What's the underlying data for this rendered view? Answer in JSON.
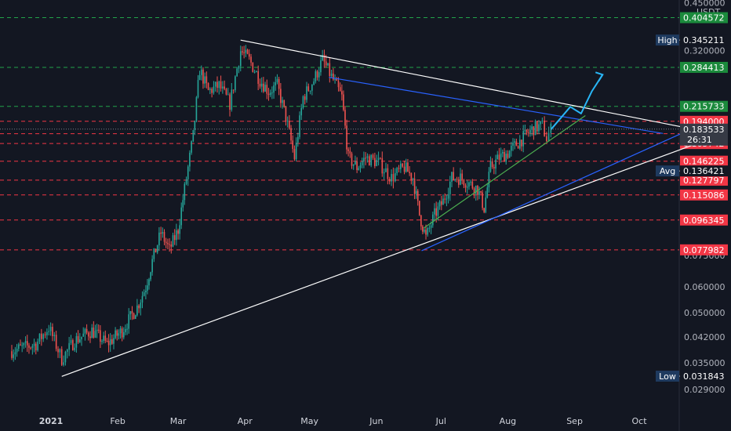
{
  "chart_data": {
    "type": "candlestick",
    "currency": "USDT",
    "y_scale": "log",
    "ylim": [
      0.026,
      0.47
    ],
    "grid": false,
    "y_ticks": [
      "0.450000",
      "0.320000",
      "0.075000",
      "0.060000",
      "0.050000",
      "0.042000",
      "0.035000",
      "0.029000"
    ],
    "x_ticks": [
      "2021",
      "Feb",
      "Mar",
      "Apr",
      "May",
      "Jun",
      "Jul",
      "Aug",
      "Sep",
      "Oct"
    ],
    "x_range": [
      "2020-12-13",
      "2021-10-27"
    ],
    "stats": {
      "high_label": "High",
      "high_value": "0.345211",
      "avg_label": "Avg",
      "avg_value": "0.136421",
      "low_label": "Low",
      "low_value": "0.031843"
    },
    "last_price": {
      "value": "0.183533",
      "countdown": "26:31"
    },
    "resistance_levels": [
      {
        "value": "0.404572",
        "style": "green-dashed"
      },
      {
        "value": "0.284413",
        "style": "green-dashed"
      },
      {
        "value": "0.215733",
        "style": "green-dashed"
      },
      {
        "value": "0.194000",
        "style": "red-dashed"
      },
      {
        "value": "0.177660",
        "style": "red-dashed"
      },
      {
        "value": "0.165742",
        "style": "red-dashed"
      },
      {
        "value": "0.146225",
        "style": "red-dashed"
      },
      {
        "value": "0.127797",
        "style": "red-dashed"
      },
      {
        "value": "0.115086",
        "style": "red-dashed"
      },
      {
        "value": "0.096345",
        "style": "red-dashed"
      },
      {
        "value": "0.077982",
        "style": "red-dashed"
      }
    ],
    "trendlines": [
      {
        "color": "#ffffff",
        "from": [
          "2021-01-06",
          0.0318
        ],
        "to": [
          "2021-10-27",
          0.165
        ]
      },
      {
        "color": "#ffffff",
        "from": [
          "2021-03-30",
          0.345
        ],
        "to": [
          "2021-10-27",
          0.183
        ]
      },
      {
        "color": "#2962ff",
        "from": [
          "2021-05-10",
          0.265
        ],
        "to": [
          "2021-10-12",
          0.178
        ]
      },
      {
        "color": "#2962ff",
        "from": [
          "2021-06-22",
          0.0775
        ],
        "to": [
          "2021-10-23",
          0.181
        ]
      },
      {
        "color": "#4caf50",
        "from": [
          "2021-06-23",
          0.091
        ],
        "to": [
          "2021-09-06",
          0.202
        ]
      }
    ],
    "price_path": [
      [
        "2020-12-13",
        0.038
      ],
      [
        "2020-12-25",
        0.04
      ],
      [
        "2020-12-31",
        0.045
      ],
      [
        "2021-01-06",
        0.036
      ],
      [
        "2021-01-12",
        0.041
      ],
      [
        "2021-01-20",
        0.044
      ],
      [
        "2021-01-27",
        0.04
      ],
      [
        "2021-02-03",
        0.044
      ],
      [
        "2021-02-10",
        0.052
      ],
      [
        "2021-02-14",
        0.06
      ],
      [
        "2021-02-17",
        0.072
      ],
      [
        "2021-02-21",
        0.088
      ],
      [
        "2021-02-25",
        0.078
      ],
      [
        "2021-03-01",
        0.09
      ],
      [
        "2021-03-04",
        0.12
      ],
      [
        "2021-03-08",
        0.175
      ],
      [
        "2021-03-11",
        0.28
      ],
      [
        "2021-03-15",
        0.24
      ],
      [
        "2021-03-20",
        0.25
      ],
      [
        "2021-03-25",
        0.22
      ],
      [
        "2021-03-30",
        0.32
      ],
      [
        "2021-04-03",
        0.3
      ],
      [
        "2021-04-08",
        0.26
      ],
      [
        "2021-04-12",
        0.24
      ],
      [
        "2021-04-16",
        0.25
      ],
      [
        "2021-04-20",
        0.2
      ],
      [
        "2021-04-24",
        0.15
      ],
      [
        "2021-04-28",
        0.23
      ],
      [
        "2021-05-03",
        0.26
      ],
      [
        "2021-05-07",
        0.3
      ],
      [
        "2021-05-12",
        0.26
      ],
      [
        "2021-05-16",
        0.23
      ],
      [
        "2021-05-19",
        0.15
      ],
      [
        "2021-05-23",
        0.14
      ],
      [
        "2021-05-27",
        0.15
      ],
      [
        "2021-06-02",
        0.145
      ],
      [
        "2021-06-08",
        0.13
      ],
      [
        "2021-06-14",
        0.14
      ],
      [
        "2021-06-18",
        0.13
      ],
      [
        "2021-06-21",
        0.1
      ],
      [
        "2021-06-24",
        0.085
      ],
      [
        "2021-06-28",
        0.1
      ],
      [
        "2021-07-02",
        0.11
      ],
      [
        "2021-07-06",
        0.13
      ],
      [
        "2021-07-10",
        0.13
      ],
      [
        "2021-07-14",
        0.125
      ],
      [
        "2021-07-18",
        0.12
      ],
      [
        "2021-07-21",
        0.105
      ],
      [
        "2021-07-24",
        0.14
      ],
      [
        "2021-07-28",
        0.15
      ],
      [
        "2021-08-01",
        0.155
      ],
      [
        "2021-08-05",
        0.165
      ],
      [
        "2021-08-09",
        0.175
      ],
      [
        "2021-08-13",
        0.185
      ],
      [
        "2021-08-17",
        0.188
      ],
      [
        "2021-08-19",
        0.172
      ],
      [
        "2021-08-21",
        0.183
      ]
    ],
    "projection_arrow": [
      [
        "2021-08-21",
        0.183
      ],
      [
        "2021-08-30",
        0.215
      ],
      [
        "2021-09-04",
        0.205
      ],
      [
        "2021-09-09",
        0.24
      ],
      [
        "2021-09-14",
        0.27
      ]
    ]
  }
}
